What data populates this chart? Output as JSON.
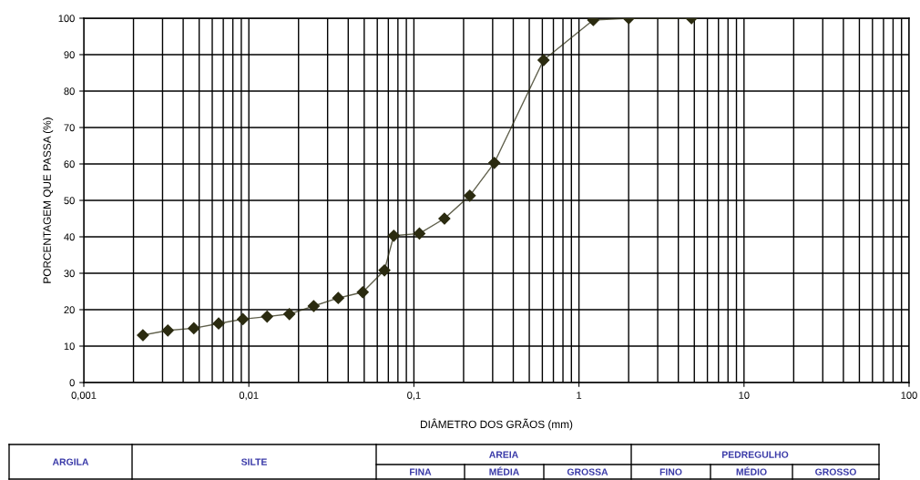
{
  "chart_data": {
    "type": "line",
    "xlabel": "DIÂMETRO DOS GRÃOS (mm)",
    "ylabel": "PORCENTAGEM QUE PASSA (%)",
    "x": [
      0.00228,
      0.00323,
      0.00464,
      0.00656,
      0.0092,
      0.0129,
      0.0176,
      0.0247,
      0.0348,
      0.049,
      0.0663,
      0.0755,
      0.108,
      0.153,
      0.218,
      0.307,
      0.61,
      1.22,
      2.0,
      4.8
    ],
    "series": [
      {
        "color": "#2b2b10",
        "values": [
          13,
          14.3,
          14.9,
          16.2,
          17.4,
          18.1,
          18.8,
          21,
          23.2,
          24.8,
          30.8,
          40.3,
          40.9,
          45,
          51.3,
          60.3,
          88.5,
          99.5,
          100,
          100
        ]
      }
    ],
    "log": "x",
    "marker": "diamond",
    "line_style": "solid",
    "grid": true,
    "xlim": [
      0.001,
      100
    ],
    "xticks": [
      {
        "value": 0.001,
        "label": "0,001"
      },
      {
        "value": 0.01,
        "label": "0,01"
      },
      {
        "value": 0.1,
        "label": "0,1"
      },
      1,
      10,
      100
    ],
    "ylim": [
      0,
      100
    ],
    "yticks": [
      0,
      10,
      20,
      30,
      40,
      50,
      60,
      70,
      80,
      90,
      100
    ],
    "annotations": [
      "ARGILA",
      "SILTE",
      "AREIA",
      "PEDREGULHO",
      "FINA",
      "MÉDIA",
      "GROSSA",
      "FINO",
      "MÉDIO",
      "GROSSO"
    ]
  }
}
